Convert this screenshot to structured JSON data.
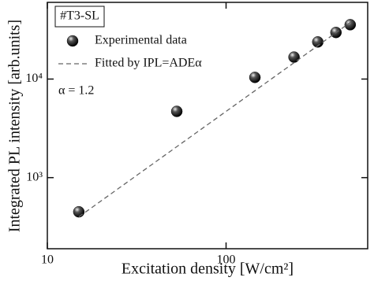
{
  "chart_data": {
    "type": "scatter",
    "xlabel": "Excitation density [W/cm²]",
    "ylabel": "Integrated PL intensity [arb.units]",
    "xscale": "log",
    "yscale": "log",
    "xlim": [
      10,
      620
    ],
    "ylim": [
      190,
      60000
    ],
    "xticks": [
      10,
      100
    ],
    "yticks": [
      {
        "value": 1000,
        "label": "10³"
      },
      {
        "value": 10000,
        "label": "10⁴"
      }
    ],
    "legend": "upper left",
    "annotations": [
      "#T3-SL",
      "α = 1.2"
    ],
    "series": [
      {
        "name": "Experimental data",
        "color": "#111111",
        "marker": "sphere",
        "x": [
          15,
          53,
          145,
          240,
          326,
          412,
          495
        ],
        "values": [
          450,
          4700,
          10400,
          16700,
          23800,
          29700,
          35600
        ]
      },
      {
        "name": "Fitted by IPL=ADEα",
        "color": "#666666",
        "marker": "dashed-line",
        "x": [
          15,
          500
        ],
        "values": [
          400,
          38000
        ]
      }
    ]
  }
}
